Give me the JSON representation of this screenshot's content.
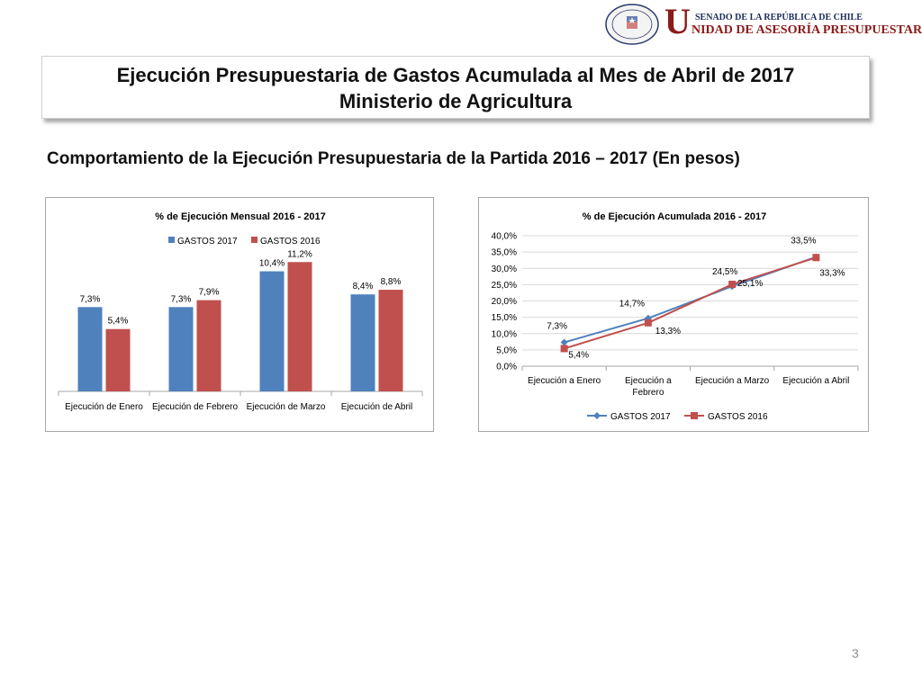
{
  "header": {
    "logo_top_text": "SENADO DE LA REPÚBLICA DE CHILE",
    "logo_letter": "U",
    "logo_main_text": "NIDAD DE ASESORÍA PRESUPUESTARIA",
    "seal_text": "REPÚBLICA DE CHILE",
    "seal_bottom": "SENADO"
  },
  "title": {
    "line1": "Ejecución Presupuestaria de Gastos Acumulada al Mes de Abril de 2017",
    "line2": "Ministerio de Agricultura"
  },
  "subtitle": "Comportamiento de la Ejecución Presupuestaria de la Partida 2016 – 2017 (En pesos)",
  "page_number": "3",
  "colors": {
    "gastos_2017": "#4f81bd",
    "gastos_2016": "#c0504d"
  },
  "chart_data": [
    {
      "type": "bar",
      "title": "% de Ejecución Mensual 2016 - 2017",
      "legend_position": "top",
      "categories": [
        "Ejecución de Enero",
        "Ejecución de Febrero",
        "Ejecución de Marzo",
        "Ejecución de Abril"
      ],
      "series": [
        {
          "name": "GASTOS 2017",
          "values": [
            7.3,
            7.3,
            10.4,
            8.4
          ],
          "labels": [
            "7,3%",
            "7,3%",
            "10,4%",
            "8,4%"
          ]
        },
        {
          "name": "GASTOS 2016",
          "values": [
            5.4,
            7.9,
            11.2,
            8.8
          ],
          "labels": [
            "5,4%",
            "7,9%",
            "11,2%",
            "8,8%"
          ]
        }
      ],
      "ylim": [
        0,
        12
      ],
      "grid": false
    },
    {
      "type": "line",
      "title": "% de Ejecución Acumulada 2016 - 2017",
      "legend_position": "bottom",
      "categories": [
        "Ejecución a Enero",
        "Ejecución a Febrero",
        "Ejecución a Marzo",
        "Ejecución a Abril"
      ],
      "yticks": [
        "0,0%",
        "5,0%",
        "10,0%",
        "15,0%",
        "20,0%",
        "25,0%",
        "30,0%",
        "35,0%",
        "40,0%"
      ],
      "ylim": [
        0,
        40
      ],
      "grid": true,
      "series": [
        {
          "name": "GASTOS 2017",
          "values": [
            7.3,
            14.7,
            24.5,
            33.5
          ],
          "labels": [
            "7,3%",
            "14,7%",
            "24,5%",
            "33,5%"
          ]
        },
        {
          "name": "GASTOS 2016",
          "values": [
            5.4,
            13.3,
            25.1,
            33.3
          ],
          "labels": [
            "5,4%",
            "13,3%",
            "25,1%",
            "33,3%"
          ]
        }
      ]
    }
  ]
}
